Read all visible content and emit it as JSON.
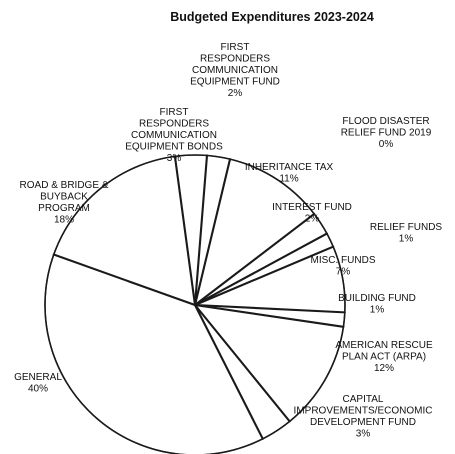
{
  "chart_data": {
    "type": "pie",
    "title": "Budgeted Expenditures 2023-2024",
    "slice_fill": "#ffffff",
    "stroke_color": "#1a1a1a",
    "slices": [
      {
        "label_lines": [
          "INHERITANCE TAX",
          "11%"
        ],
        "value": 11
      },
      {
        "label_lines": [
          "INTEREST FUND",
          "2%"
        ],
        "value": 2
      },
      {
        "label_lines": [
          "RELIEF FUNDS",
          "1%"
        ],
        "value": 1
      },
      {
        "label_lines": [
          "MISC. FUNDS",
          "7%"
        ],
        "value": 7
      },
      {
        "label_lines": [
          "BUILDING FUND",
          "1%"
        ],
        "value": 1
      },
      {
        "label_lines": [
          "AMERICAN RESCUE",
          "PLAN ACT (ARPA)",
          "12%"
        ],
        "value": 12
      },
      {
        "label_lines": [
          "CAPITAL",
          "IMPROVEMENTS/ECONOMIC",
          "DEVELOPMENT FUND",
          "3%"
        ],
        "value": 3
      },
      {
        "label_lines": [
          "GENERAL",
          "40%"
        ],
        "value": 40
      },
      {
        "label_lines": [
          "ROAD & BRIDGE &",
          "BUYBACK",
          "PROGRAM",
          "18%"
        ],
        "value": 18
      },
      {
        "label_lines": [
          "FIRST",
          "RESPONDERS",
          "COMMUNICATION",
          "EQUIPMENT BONDS",
          "3%"
        ],
        "value": 3
      },
      {
        "label_lines": [
          "FIRST",
          "RESPONDERS",
          "COMMUNICATION",
          "EQUIPMENT FUND",
          "2%"
        ],
        "value": 2
      },
      {
        "label_lines": [
          "FLOOD DISASTER",
          "RELIEF FUND 2019",
          "0%"
        ],
        "value": 0
      }
    ]
  }
}
